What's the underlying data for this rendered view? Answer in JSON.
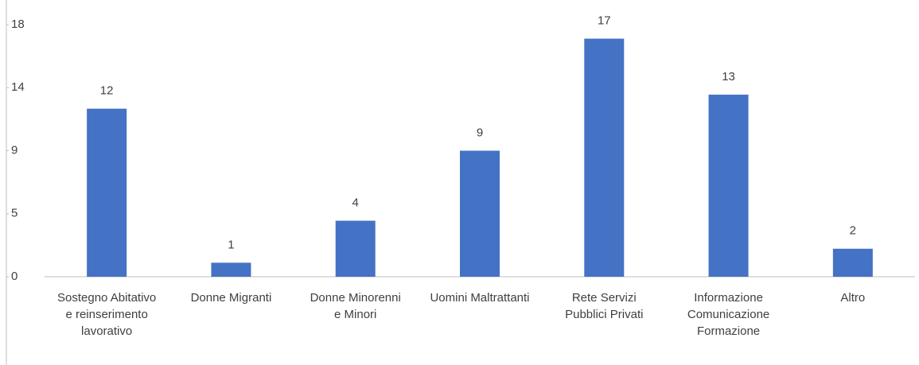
{
  "chart_data": {
    "type": "bar",
    "categories": [
      "Sostegno Abitativo e reinserimento lavorativo",
      "Donne Migranti",
      "Donne Minorenni e Minori",
      "Uomini Maltrattanti",
      "Rete Servizi Pubblici Privati",
      "Informazione Comunicazione Formazione",
      "Altro"
    ],
    "values": [
      12,
      1,
      4,
      9,
      17,
      13,
      2
    ],
    "color": "#4472c4",
    "ylim": [
      0,
      18
    ],
    "yticks": [
      0,
      {
        "value": 4.5,
        "label": "5"
      },
      9,
      {
        "value": 13.5,
        "label": "14"
      },
      18
    ],
    "grid": false
  }
}
